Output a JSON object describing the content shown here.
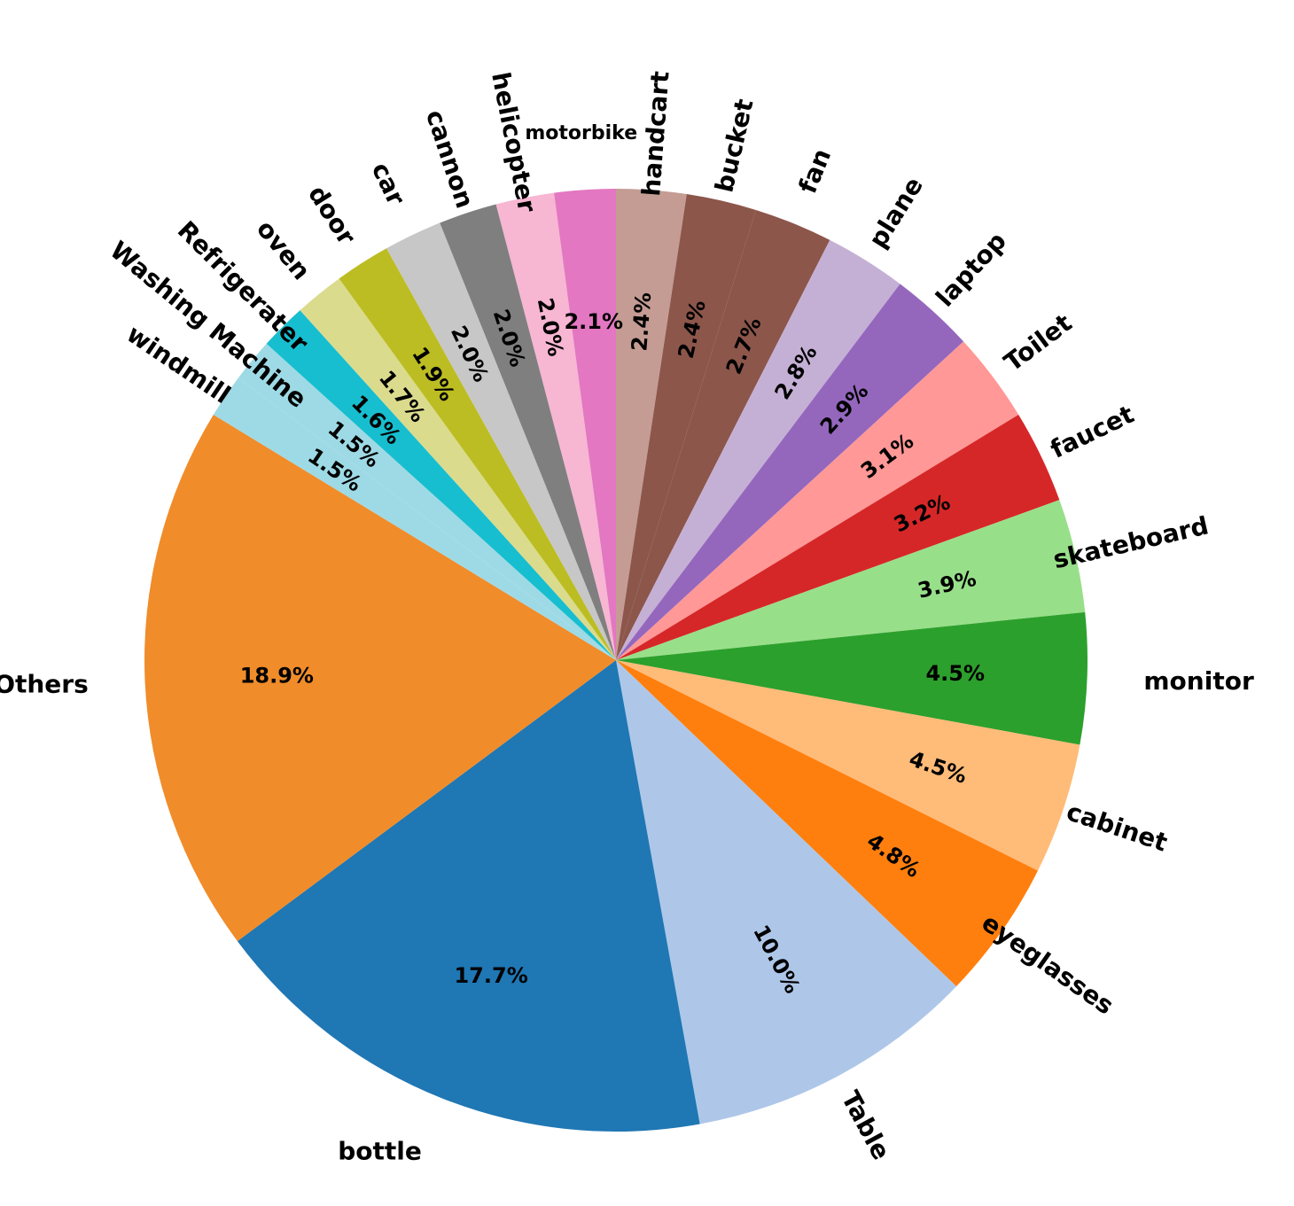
{
  "chart_data": {
    "type": "pie",
    "start_angle_deg": 90,
    "direction": "clockwise",
    "slices": [
      {
        "label": "handcart",
        "value": 2.4,
        "pct_label": "2.4%",
        "color": "#c49c94",
        "label_rotation": "radial"
      },
      {
        "label": "bucket",
        "value": 2.4,
        "pct_label": "2.4%",
        "color": "#8c564b",
        "label_rotation": "radial"
      },
      {
        "label": "fan",
        "value": 2.7,
        "pct_label": "2.7%",
        "color": "#8c564b",
        "label_rotation": "radial"
      },
      {
        "label": "plane",
        "value": 2.8,
        "pct_label": "2.8%",
        "color": "#c5b0d5",
        "label_rotation": "radial"
      },
      {
        "label": "laptop",
        "value": 2.9,
        "pct_label": "2.9%",
        "color": "#9467bd",
        "label_rotation": "radial"
      },
      {
        "label": "Toilet",
        "value": 3.1,
        "pct_label": "3.1%",
        "color": "#ff9896",
        "label_rotation": "radial"
      },
      {
        "label": "faucet",
        "value": 3.2,
        "pct_label": "3.2%",
        "color": "#d62728",
        "label_rotation": "radial"
      },
      {
        "label": "skateboard",
        "value": 3.9,
        "pct_label": "3.9%",
        "color": "#98df8a",
        "label_rotation": "radial"
      },
      {
        "label": "monitor",
        "value": 4.5,
        "pct_label": "4.5%",
        "color": "#2ca02c",
        "label_rotation": "none"
      },
      {
        "label": "cabinet",
        "value": 4.5,
        "pct_label": "4.5%",
        "color": "#ffbb78",
        "label_rotation": "radial"
      },
      {
        "label": "eyeglasses",
        "value": 4.8,
        "pct_label": "4.8%",
        "color": "#ff7f0e",
        "label_rotation": "radial"
      },
      {
        "label": "Table",
        "value": 10.0,
        "pct_label": "10.0%",
        "color": "#aec7e8",
        "label_rotation": "radial"
      },
      {
        "label": "bottle",
        "value": 17.7,
        "pct_label": "17.7%",
        "color": "#1f77b4",
        "label_rotation": "none"
      },
      {
        "label": "Others",
        "value": 18.9,
        "pct_label": "18.9%",
        "color": "#f08c2a",
        "label_rotation": "none"
      },
      {
        "label": "windmill",
        "value": 1.5,
        "pct_label": "1.5%",
        "color": "#9edae5",
        "label_rotation": "radial"
      },
      {
        "label": "Washing Machine",
        "value": 1.5,
        "pct_label": "1.5%",
        "color": "#9edae5",
        "label_rotation": "radial"
      },
      {
        "label": "Refrigerater",
        "value": 1.6,
        "pct_label": "1.6%",
        "color": "#17becf",
        "label_rotation": "radial"
      },
      {
        "label": "oven",
        "value": 1.7,
        "pct_label": "1.7%",
        "color": "#dbdb8d",
        "label_rotation": "radial"
      },
      {
        "label": "door",
        "value": 1.9,
        "pct_label": "1.9%",
        "color": "#bcbd22",
        "label_rotation": "radial"
      },
      {
        "label": "car",
        "value": 2.0,
        "pct_label": "2.0%",
        "color": "#c7c7c7",
        "label_rotation": "radial"
      },
      {
        "label": "cannon",
        "value": 2.0,
        "pct_label": "2.0%",
        "color": "#7f7f7f",
        "label_rotation": "radial"
      },
      {
        "label": "helicopter",
        "value": 2.0,
        "pct_label": "2.0%",
        "color": "#f7b6d2",
        "label_rotation": "radial"
      },
      {
        "label": "motorbike",
        "value": 2.1,
        "pct_label": "2.1%",
        "color": "#e377c2",
        "label_rotation": "none"
      }
    ]
  }
}
